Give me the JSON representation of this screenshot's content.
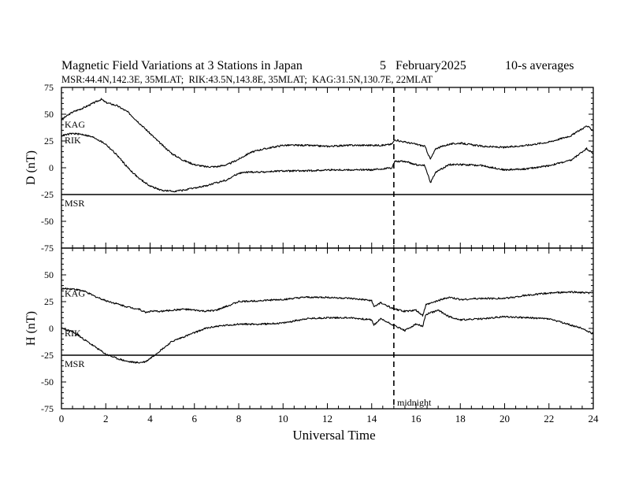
{
  "header": {
    "title": "Magnetic Field Variations at 3 Stations in Japan",
    "date": "5   February2025",
    "averaging": "10-s averages",
    "stations_line": "MSR:44.4N,142.3E, 35MLAT;  RIK:43.5N,143.8E, 35MLAT;  KAG:31.5N,130.7E, 22MLAT"
  },
  "chart_data": [
    {
      "type": "line",
      "panel": "D",
      "ylabel": "D (nT)",
      "xlabel": "",
      "ylim": [
        -75,
        75
      ],
      "xlim": [
        0,
        24
      ],
      "yticks": [
        75,
        50,
        25,
        0,
        -25,
        -50,
        -75
      ],
      "grid": false,
      "series": [
        {
          "name": "KAG",
          "x": [
            0,
            0.5,
            1,
            1.5,
            1.8,
            2,
            2.5,
            3,
            3.5,
            4,
            4.5,
            5,
            5.5,
            6,
            6.5,
            7,
            7.5,
            8,
            8.5,
            9,
            10,
            11,
            12,
            13,
            14,
            14.5,
            14.9,
            15.05,
            15.5,
            16,
            16.4,
            16.65,
            16.9,
            17.5,
            18,
            19,
            20,
            21,
            22,
            23,
            23.7,
            24
          ],
          "y": [
            45,
            52,
            56,
            61,
            64,
            61,
            58,
            52,
            42,
            32,
            22,
            13,
            7,
            3,
            1,
            1,
            3,
            8,
            14,
            17,
            21,
            21,
            20,
            21,
            21,
            21,
            22,
            26,
            24,
            22,
            20,
            8,
            18,
            22,
            23,
            20,
            19,
            21,
            24,
            30,
            39,
            35
          ]
        },
        {
          "name": "RIK",
          "x": [
            0,
            0.5,
            1,
            1.5,
            2,
            2.5,
            3,
            3.5,
            4,
            4.5,
            5,
            5.5,
            6,
            6.5,
            7,
            7.5,
            8,
            8.5,
            9,
            10,
            11,
            12,
            13,
            14,
            14.5,
            14.9,
            15.05,
            15.5,
            16,
            16.4,
            16.65,
            16.9,
            17.5,
            18,
            19,
            20,
            21,
            22,
            23,
            23.7,
            24
          ],
          "y": [
            30,
            32,
            31,
            28,
            22,
            12,
            0,
            -10,
            -17,
            -21,
            -22,
            -21,
            -19,
            -17,
            -14,
            -11,
            -5,
            -4,
            -4,
            -3,
            -3,
            -2,
            -2,
            -2,
            -1,
            0,
            6,
            6,
            3,
            2,
            -14,
            -4,
            3,
            3,
            2,
            -2,
            -1,
            2,
            7,
            18,
            13
          ]
        },
        {
          "name": "MSR",
          "x": [
            0,
            24
          ],
          "y": [
            -25,
            -25
          ]
        }
      ]
    },
    {
      "type": "line",
      "panel": "H",
      "ylabel": "H (nT)",
      "xlabel": "Universal Time",
      "ylim": [
        -75,
        75
      ],
      "xlim": [
        0,
        24
      ],
      "yticks": [
        50,
        25,
        0,
        -25,
        -50,
        -75
      ],
      "xticks": [
        0,
        2,
        4,
        6,
        8,
        10,
        12,
        14,
        16,
        18,
        20,
        22,
        24
      ],
      "grid": false,
      "series": [
        {
          "name": "KAG",
          "x": [
            0,
            0.5,
            1,
            1.5,
            2,
            2.5,
            3,
            3.5,
            3.8,
            4,
            4.5,
            5,
            5.5,
            6,
            6.5,
            7,
            7.5,
            8,
            9,
            10,
            11,
            12,
            13,
            14,
            14.1,
            14.4,
            15,
            15.5,
            16,
            16.3,
            16.45,
            17,
            17.5,
            18,
            19,
            20,
            21,
            22,
            23,
            24
          ],
          "y": [
            37,
            37,
            35,
            30,
            26,
            23,
            20,
            18,
            15,
            16,
            16,
            17,
            18,
            17,
            16,
            17,
            21,
            25,
            26,
            27,
            29,
            29,
            28,
            26,
            20,
            24,
            18,
            16,
            17,
            12,
            22,
            26,
            29,
            27,
            28,
            28,
            31,
            33,
            34,
            33
          ]
        },
        {
          "name": "RIK",
          "x": [
            0,
            0.5,
            1,
            1.5,
            2,
            2.5,
            3,
            3.5,
            3.8,
            4,
            4.5,
            5,
            5.5,
            6,
            6.5,
            7,
            7.5,
            8,
            9,
            10,
            11,
            12,
            13,
            14,
            14.1,
            14.4,
            15,
            15.5,
            16,
            16.3,
            16.45,
            17,
            17.5,
            18,
            19,
            20,
            21,
            22,
            23,
            23.5,
            24
          ],
          "y": [
            0,
            -3,
            -10,
            -17,
            -24,
            -28,
            -31,
            -32,
            -31,
            -28,
            -20,
            -12,
            -8,
            -4,
            0,
            2,
            3,
            4,
            4,
            5,
            9,
            10,
            10,
            8,
            3,
            9,
            3,
            -2,
            4,
            2,
            13,
            17,
            11,
            8,
            9,
            11,
            10,
            9,
            3,
            0,
            -5
          ]
        },
        {
          "name": "MSR",
          "x": [
            0,
            24
          ],
          "y": [
            -25,
            -25
          ]
        }
      ]
    }
  ],
  "annotations": {
    "midnight_label": "midnight",
    "midnight_ut": 15
  }
}
